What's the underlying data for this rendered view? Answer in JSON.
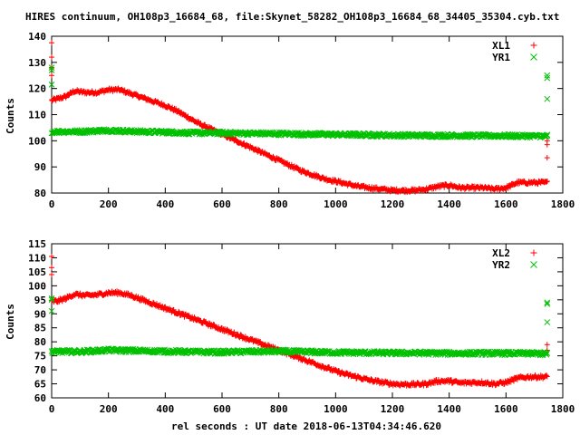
{
  "title": "HIRES continuum, OH108p3_16684_68, file:Skynet_58282_OH108p3_16684_68_34405_35304.cyb.txt",
  "xlabel": "rel seconds : UT date 2018-06-13T04:34:46.620",
  "chart_data": [
    {
      "type": "scatter",
      "ylabel": "Counts",
      "xlim": [
        0,
        1800
      ],
      "ylim": [
        80,
        140
      ],
      "xticks": [
        0,
        200,
        400,
        600,
        800,
        1000,
        1200,
        1400,
        1600,
        1800
      ],
      "yticks": [
        80,
        90,
        100,
        110,
        120,
        130,
        140
      ],
      "legend_position": "top-right",
      "series": [
        {
          "name": "XL1",
          "marker": "+",
          "color": "#ff0000",
          "trend": [
            [
              0,
              115.5
            ],
            [
              20,
              116
            ],
            [
              50,
              117
            ],
            [
              80,
              119
            ],
            [
              120,
              118.5
            ],
            [
              160,
              118.5
            ],
            [
              200,
              119.5
            ],
            [
              240,
              119.5
            ],
            [
              280,
              118
            ],
            [
              320,
              116.5
            ],
            [
              360,
              115
            ],
            [
              400,
              113.5
            ],
            [
              440,
              111.5
            ],
            [
              480,
              109
            ],
            [
              520,
              106.5
            ],
            [
              560,
              104.5
            ],
            [
              600,
              102.5
            ],
            [
              640,
              100.5
            ],
            [
              680,
              98.5
            ],
            [
              720,
              96.5
            ],
            [
              760,
              94.5
            ],
            [
              800,
              92.5
            ],
            [
              840,
              90.5
            ],
            [
              880,
              88.5
            ],
            [
              920,
              87
            ],
            [
              960,
              85.5
            ],
            [
              1000,
              84.5
            ],
            [
              1040,
              83.5
            ],
            [
              1080,
              82.5
            ],
            [
              1120,
              82
            ],
            [
              1160,
              81.5
            ],
            [
              1200,
              81
            ],
            [
              1240,
              81
            ],
            [
              1280,
              81
            ],
            [
              1320,
              81.5
            ],
            [
              1360,
              82.5
            ],
            [
              1400,
              83
            ],
            [
              1440,
              82
            ],
            [
              1480,
              82
            ],
            [
              1520,
              82
            ],
            [
              1560,
              81.5
            ],
            [
              1600,
              82
            ],
            [
              1640,
              84
            ],
            [
              1680,
              84
            ],
            [
              1720,
              84
            ],
            [
              1745,
              84
            ]
          ],
          "outliers": [
            [
              0,
              137.5
            ],
            [
              0,
              132
            ],
            [
              0,
              128
            ],
            [
              0,
              125
            ],
            [
              1745,
              100
            ],
            [
              1745,
              98.5
            ],
            [
              1745,
              93.5
            ],
            [
              1745,
              84.5
            ]
          ]
        },
        {
          "name": "YR1",
          "marker": "x",
          "color": "#00c000",
          "trend": [
            [
              0,
              103.5
            ],
            [
              100,
              103.5
            ],
            [
              200,
              104
            ],
            [
              300,
              103.5
            ],
            [
              400,
              103.3
            ],
            [
              500,
              103
            ],
            [
              600,
              103
            ],
            [
              700,
              102.8
            ],
            [
              800,
              102.7
            ],
            [
              900,
              102.5
            ],
            [
              1000,
              102.4
            ],
            [
              1100,
              102.3
            ],
            [
              1200,
              102.1
            ],
            [
              1300,
              102
            ],
            [
              1400,
              102
            ],
            [
              1500,
              101.9
            ],
            [
              1600,
              101.9
            ],
            [
              1700,
              101.8
            ],
            [
              1745,
              101.8
            ]
          ],
          "outliers": [
            [
              0,
              128
            ],
            [
              0,
              127
            ],
            [
              0,
              121.5
            ],
            [
              1745,
              125
            ],
            [
              1745,
              124
            ],
            [
              1745,
              116
            ],
            [
              1745,
              102
            ]
          ]
        }
      ]
    },
    {
      "type": "scatter",
      "ylabel": "Counts",
      "xlim": [
        0,
        1800
      ],
      "ylim": [
        60,
        115
      ],
      "xticks": [
        0,
        200,
        400,
        600,
        800,
        1000,
        1200,
        1400,
        1600,
        1800
      ],
      "yticks": [
        60,
        65,
        70,
        75,
        80,
        85,
        90,
        95,
        100,
        105,
        110,
        115
      ],
      "legend_position": "top-right",
      "series": [
        {
          "name": "XL2",
          "marker": "+",
          "color": "#ff0000",
          "trend": [
            [
              0,
              94.5
            ],
            [
              20,
              94.5
            ],
            [
              50,
              95.5
            ],
            [
              80,
              97
            ],
            [
              120,
              96.5
            ],
            [
              160,
              96.8
            ],
            [
              200,
              97.5
            ],
            [
              240,
              97.5
            ],
            [
              280,
              96.5
            ],
            [
              320,
              95
            ],
            [
              360,
              93.5
            ],
            [
              400,
              92
            ],
            [
              440,
              90.5
            ],
            [
              480,
              89
            ],
            [
              520,
              87.5
            ],
            [
              560,
              86
            ],
            [
              600,
              84.5
            ],
            [
              640,
              83
            ],
            [
              680,
              81.5
            ],
            [
              720,
              80
            ],
            [
              760,
              78.5
            ],
            [
              800,
              77
            ],
            [
              840,
              75.5
            ],
            [
              880,
              74
            ],
            [
              920,
              72.5
            ],
            [
              960,
              71
            ],
            [
              1000,
              69.5
            ],
            [
              1040,
              68.3
            ],
            [
              1080,
              67.3
            ],
            [
              1120,
              66.3
            ],
            [
              1160,
              65.6
            ],
            [
              1200,
              65
            ],
            [
              1240,
              64.8
            ],
            [
              1280,
              64.8
            ],
            [
              1320,
              65
            ],
            [
              1360,
              66
            ],
            [
              1400,
              66
            ],
            [
              1440,
              65.3
            ],
            [
              1480,
              65.5
            ],
            [
              1520,
              65.5
            ],
            [
              1560,
              65
            ],
            [
              1600,
              65.5
            ],
            [
              1640,
              67
            ],
            [
              1680,
              67.5
            ],
            [
              1720,
              67.5
            ],
            [
              1745,
              67.5
            ]
          ],
          "outliers": [
            [
              0,
              110.5
            ],
            [
              0,
              106.5
            ],
            [
              0,
              104
            ],
            [
              1745,
              79
            ],
            [
              1745,
              77
            ]
          ]
        },
        {
          "name": "YR2",
          "marker": "x",
          "color": "#00c000",
          "trend": [
            [
              0,
              76.5
            ],
            [
              100,
              76.5
            ],
            [
              200,
              77
            ],
            [
              300,
              76.8
            ],
            [
              400,
              76.6
            ],
            [
              500,
              76.4
            ],
            [
              600,
              76.3
            ],
            [
              700,
              76.5
            ],
            [
              800,
              76.6
            ],
            [
              900,
              76.4
            ],
            [
              1000,
              76.2
            ],
            [
              1100,
              76.1
            ],
            [
              1200,
              76
            ],
            [
              1300,
              76
            ],
            [
              1400,
              75.9
            ],
            [
              1500,
              75.9
            ],
            [
              1600,
              75.9
            ],
            [
              1700,
              75.8
            ],
            [
              1745,
              75.8
            ]
          ],
          "outliers": [
            [
              0,
              95.5
            ],
            [
              0,
              95
            ],
            [
              0,
              91
            ],
            [
              1745,
              94
            ],
            [
              1745,
              93.5
            ],
            [
              1745,
              87
            ]
          ]
        }
      ]
    }
  ]
}
